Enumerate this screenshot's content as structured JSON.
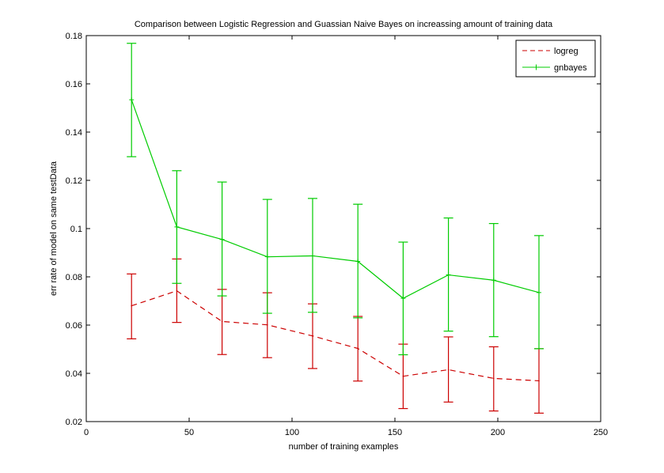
{
  "chart_data": {
    "type": "line",
    "title": "Comparison between Logistic Regression and Guassian Naive Bayes on increassing amount of training data",
    "xlabel": "number of training examples",
    "ylabel": "err rate of model on same testData",
    "xlim": [
      0,
      250
    ],
    "ylim": [
      0.02,
      0.18
    ],
    "xticks": [
      0,
      50,
      100,
      150,
      200,
      250
    ],
    "yticks": [
      0.02,
      0.04,
      0.06,
      0.08,
      0.1,
      0.12,
      0.14,
      0.16,
      0.18
    ],
    "xtick_labels": [
      "0",
      "50",
      "100",
      "150",
      "200",
      "250"
    ],
    "ytick_labels": [
      "0.02",
      "0.04",
      "0.06",
      "0.08",
      "0.1",
      "0.12",
      "0.14",
      "0.16",
      "0.18"
    ],
    "grid": false,
    "legend_position": "top-right",
    "x": [
      22,
      44,
      66,
      88,
      110,
      132,
      154,
      176,
      198,
      220
    ],
    "series": [
      {
        "name": "logreg",
        "color": "#cc0000",
        "line_style": "dashed",
        "values": [
          0.068,
          0.0742,
          0.0615,
          0.0601,
          0.0555,
          0.0503,
          0.0388,
          0.0415,
          0.0379,
          0.0369
        ],
        "err_lower": [
          0.0543,
          0.0611,
          0.0478,
          0.0465,
          0.042,
          0.0368,
          0.0254,
          0.0281,
          0.0244,
          0.0235
        ],
        "err_upper": [
          0.0812,
          0.0874,
          0.0748,
          0.0734,
          0.0688,
          0.0636,
          0.0521,
          0.0551,
          0.051,
          0.0502
        ]
      },
      {
        "name": "gnbayes",
        "color": "#00cc00",
        "line_style": "solid",
        "values": [
          0.1534,
          0.1007,
          0.0955,
          0.0883,
          0.0887,
          0.0864,
          0.0711,
          0.0808,
          0.0786,
          0.0735
        ],
        "err_lower": [
          0.1298,
          0.0773,
          0.0721,
          0.0649,
          0.0653,
          0.063,
          0.0477,
          0.0575,
          0.0552,
          0.0502
        ],
        "err_upper": [
          0.1768,
          0.124,
          0.1193,
          0.1121,
          0.1125,
          0.1101,
          0.0944,
          0.1044,
          0.1021,
          0.0971
        ]
      }
    ]
  }
}
